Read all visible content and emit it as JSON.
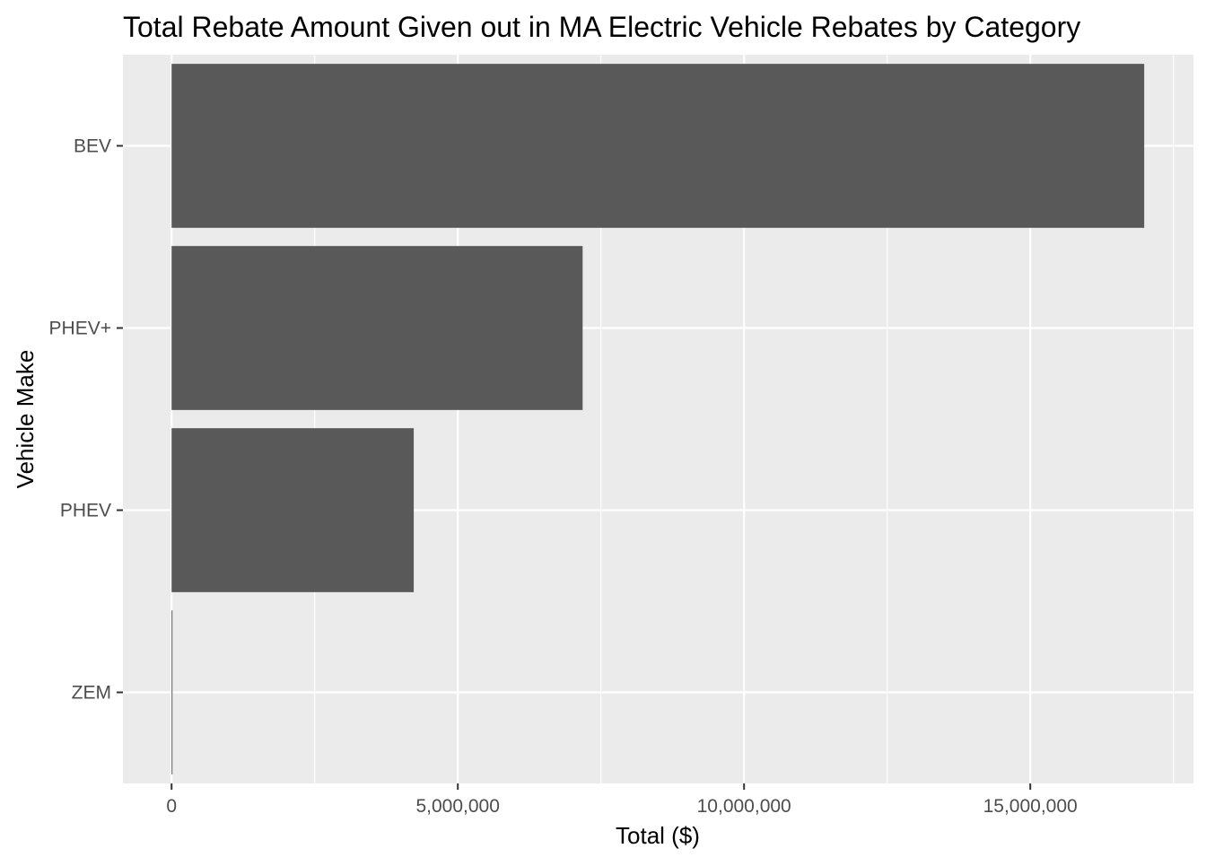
{
  "chart_data": {
    "type": "bar",
    "orientation": "horizontal",
    "title": "Total Rebate Amount Given out in MA Electric Vehicle Rebates by Category",
    "xlabel": "Total ($)",
    "ylabel": "Vehicle Make",
    "categories": [
      "BEV",
      "PHEV+",
      "PHEV",
      "ZEM"
    ],
    "values": [
      16990000,
      7180000,
      4230000,
      15000
    ],
    "xlim": [
      -850000,
      17850000
    ],
    "xticks": [
      0,
      5000000,
      10000000,
      15000000
    ],
    "xtick_labels": [
      "0",
      "5,000,000",
      "10,000,000",
      "15,000,000"
    ],
    "grid": true,
    "legend": "none",
    "colors": {
      "panel_background": "#EBEBEB",
      "grid_major": "#FFFFFF",
      "bar_fill": "#595959",
      "tick_text": "#4D4D4D",
      "title_text": "#000000"
    }
  }
}
